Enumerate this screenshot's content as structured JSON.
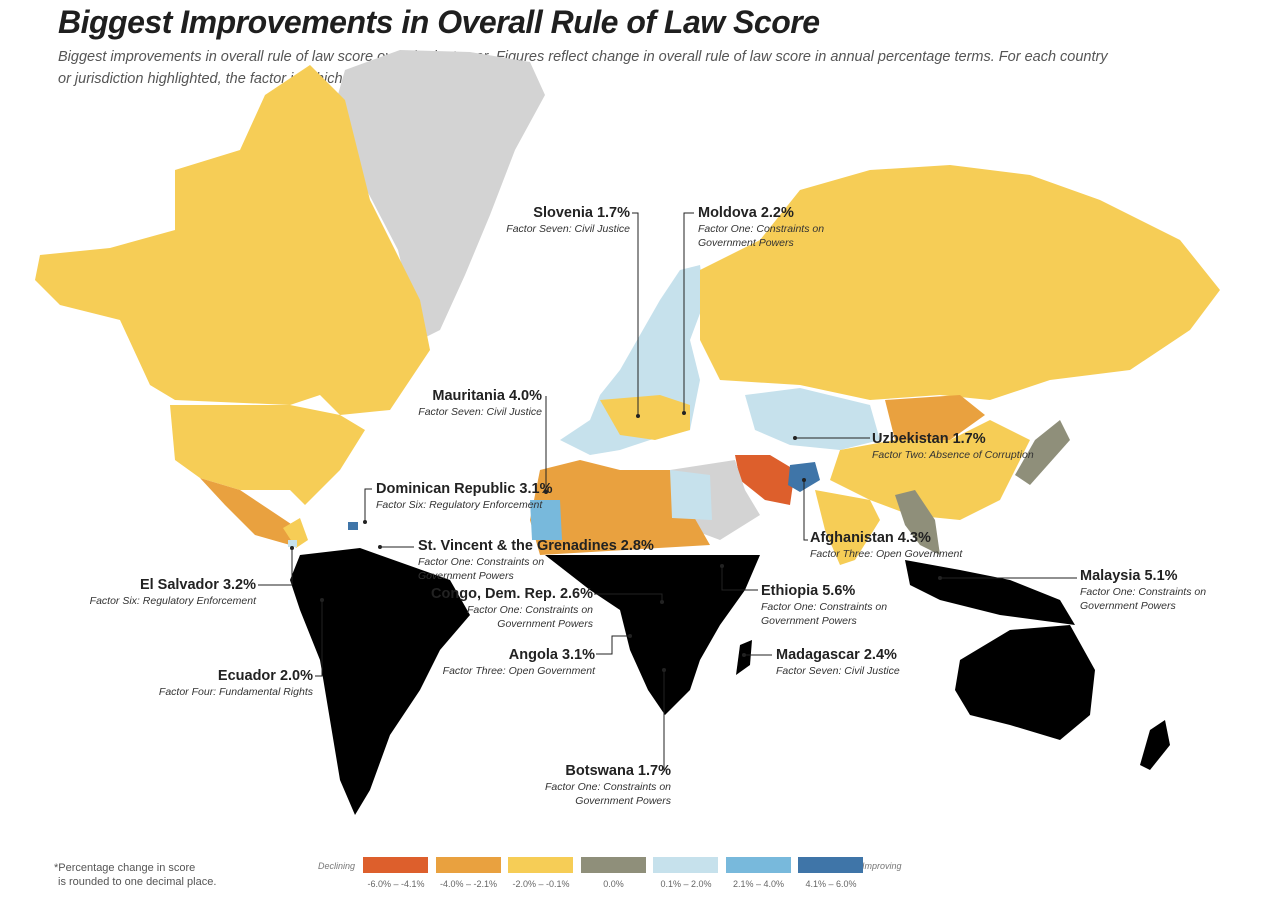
{
  "title": "Biggest Improvements in Overall Rule of Law Score",
  "subtitle": "Biggest improvements in overall rule of law score over the last year. Figures reflect change in overall rule of law score in annual percentage terms. For each country or jurisdiction highlighted, the factor in which it improved the most is listed.",
  "callouts": [
    {
      "name": "Slovenia 1.7%",
      "factor": "Factor Seven: Civil Justice"
    },
    {
      "name": "Moldova 2.2%",
      "factor": "Factor One: Constraints on Government Powers"
    },
    {
      "name": "Mauritania 4.0%",
      "factor": "Factor Seven: Civil Justice"
    },
    {
      "name": "Uzbekistan 1.7%",
      "factor": "Factor Two: Absence of Corruption"
    },
    {
      "name": "Dominican Republic 3.1%",
      "factor": "Factor Six: Regulatory Enforcement"
    },
    {
      "name": "Afghanistan 4.3%",
      "factor": "Factor Three: Open Government"
    },
    {
      "name": "St. Vincent & the Grenadines 2.8%",
      "factor": "Factor One: Constraints on Government Powers"
    },
    {
      "name": "Malaysia 5.1%",
      "factor": "Factor One: Constraints on Government Powers"
    },
    {
      "name": "El Salvador 3.2%",
      "factor": "Factor Six: Regulatory Enforcement"
    },
    {
      "name": "Congo, Dem. Rep. 2.6%",
      "factor": "Factor One: Constraints on Government Powers"
    },
    {
      "name": "Ethiopia 5.6%",
      "factor": "Factor One: Constraints on Government Powers"
    },
    {
      "name": "Angola 3.1%",
      "factor": "Factor Three: Open Government"
    },
    {
      "name": "Madagascar 2.4%",
      "factor": "Factor Seven: Civil Justice"
    },
    {
      "name": "Ecuador 2.0%",
      "factor": "Factor Four: Fundamental Rights"
    },
    {
      "name": "Botswana 1.7%",
      "factor": "Factor One: Constraints on Government Powers"
    }
  ],
  "legend": {
    "declining": "Declining",
    "improving": "Improving",
    "bins": [
      {
        "range": "-6.0% – -4.1%",
        "color": "#dd5f2c"
      },
      {
        "range": "-4.0% – -2.1%",
        "color": "#e9a13f"
      },
      {
        "range": "-2.0% – -0.1%",
        "color": "#f6cd56"
      },
      {
        "range": "0.0%",
        "color": "#8f8f7a"
      },
      {
        "range": "0.1% – 2.0%",
        "color": "#c6e1ec"
      },
      {
        "range": "2.1% – 4.0%",
        "color": "#78b9dc"
      },
      {
        "range": "4.1% – 6.0%",
        "color": "#3f75a8"
      }
    ]
  },
  "footnote": [
    "*Percentage change in score",
    "is rounded to one decimal place."
  ]
}
